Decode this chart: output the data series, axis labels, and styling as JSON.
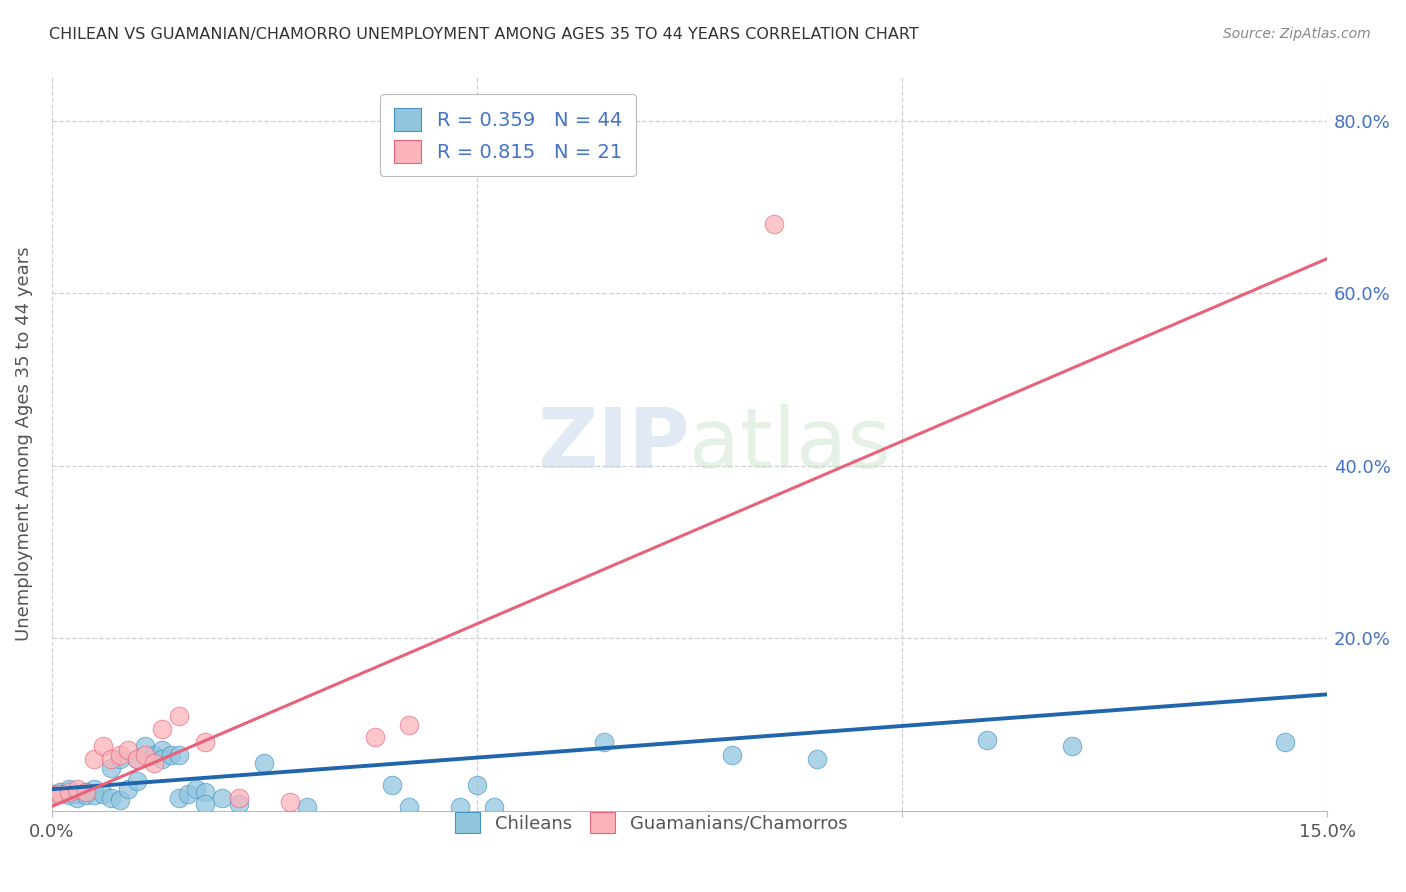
{
  "title": "CHILEAN VS GUAMANIAN/CHAMORRO UNEMPLOYMENT AMONG AGES 35 TO 44 YEARS CORRELATION CHART",
  "source": "Source: ZipAtlas.com",
  "ylabel_label": "Unemployment Among Ages 35 to 44 years",
  "legend_entries": [
    {
      "label": "Chileans",
      "R": 0.359,
      "N": 44,
      "color": "#92c5de"
    },
    {
      "label": "Guamanians/Chamorros",
      "R": 0.815,
      "N": 21,
      "color": "#fbb4b9"
    }
  ],
  "xlim": [
    0.0,
    0.15
  ],
  "ylim": [
    0.0,
    0.85
  ],
  "watermark_text": "ZIPatlas",
  "chilean_scatter": [
    [
      0.0,
      0.02
    ],
    [
      0.001,
      0.022
    ],
    [
      0.002,
      0.018
    ],
    [
      0.002,
      0.025
    ],
    [
      0.003,
      0.02
    ],
    [
      0.003,
      0.015
    ],
    [
      0.004,
      0.022
    ],
    [
      0.004,
      0.018
    ],
    [
      0.005,
      0.025
    ],
    [
      0.005,
      0.018
    ],
    [
      0.006,
      0.02
    ],
    [
      0.007,
      0.05
    ],
    [
      0.007,
      0.015
    ],
    [
      0.008,
      0.06
    ],
    [
      0.008,
      0.012
    ],
    [
      0.009,
      0.025
    ],
    [
      0.01,
      0.06
    ],
    [
      0.01,
      0.035
    ],
    [
      0.011,
      0.075
    ],
    [
      0.012,
      0.065
    ],
    [
      0.013,
      0.07
    ],
    [
      0.013,
      0.06
    ],
    [
      0.014,
      0.065
    ],
    [
      0.015,
      0.065
    ],
    [
      0.015,
      0.015
    ],
    [
      0.016,
      0.02
    ],
    [
      0.017,
      0.025
    ],
    [
      0.018,
      0.022
    ],
    [
      0.018,
      0.008
    ],
    [
      0.02,
      0.015
    ],
    [
      0.022,
      0.008
    ],
    [
      0.025,
      0.055
    ],
    [
      0.03,
      0.005
    ],
    [
      0.04,
      0.03
    ],
    [
      0.042,
      0.005
    ],
    [
      0.048,
      0.005
    ],
    [
      0.05,
      0.03
    ],
    [
      0.052,
      0.005
    ],
    [
      0.065,
      0.08
    ],
    [
      0.08,
      0.065
    ],
    [
      0.09,
      0.06
    ],
    [
      0.11,
      0.082
    ],
    [
      0.12,
      0.075
    ],
    [
      0.145,
      0.08
    ]
  ],
  "guamanian_scatter": [
    [
      0.0,
      0.018
    ],
    [
      0.001,
      0.02
    ],
    [
      0.002,
      0.022
    ],
    [
      0.003,
      0.025
    ],
    [
      0.004,
      0.022
    ],
    [
      0.005,
      0.06
    ],
    [
      0.006,
      0.075
    ],
    [
      0.007,
      0.06
    ],
    [
      0.008,
      0.065
    ],
    [
      0.009,
      0.07
    ],
    [
      0.01,
      0.06
    ],
    [
      0.011,
      0.065
    ],
    [
      0.012,
      0.055
    ],
    [
      0.013,
      0.095
    ],
    [
      0.015,
      0.11
    ],
    [
      0.018,
      0.08
    ],
    [
      0.022,
      0.015
    ],
    [
      0.028,
      0.01
    ],
    [
      0.038,
      0.085
    ],
    [
      0.042,
      0.1
    ],
    [
      0.085,
      0.68
    ]
  ],
  "chilean_line_x": [
    0.0,
    0.15
  ],
  "chilean_line_y": [
    0.025,
    0.135
  ],
  "guamanian_line_x": [
    0.0,
    0.15
  ],
  "guamanian_line_y": [
    0.005,
    0.64
  ],
  "chilean_line_color": "#2166ac",
  "guamanian_line_color": "#e8627a",
  "scatter_blue": "#92c5de",
  "scatter_pink": "#fbb4b9",
  "scatter_blue_edge": "#4393c3",
  "scatter_pink_edge": "#e8627a",
  "background_color": "#ffffff",
  "grid_color": "#d0d0d0",
  "ytick_vals": [
    0.2,
    0.4,
    0.6,
    0.8
  ],
  "ytick_labels": [
    "20.0%",
    "40.0%",
    "60.0%",
    "80.0%"
  ],
  "xtick_vals": [
    0.0,
    0.05,
    0.1,
    0.15
  ],
  "xtick_labels": [
    "0.0%",
    "",
    "",
    "15.0%"
  ]
}
